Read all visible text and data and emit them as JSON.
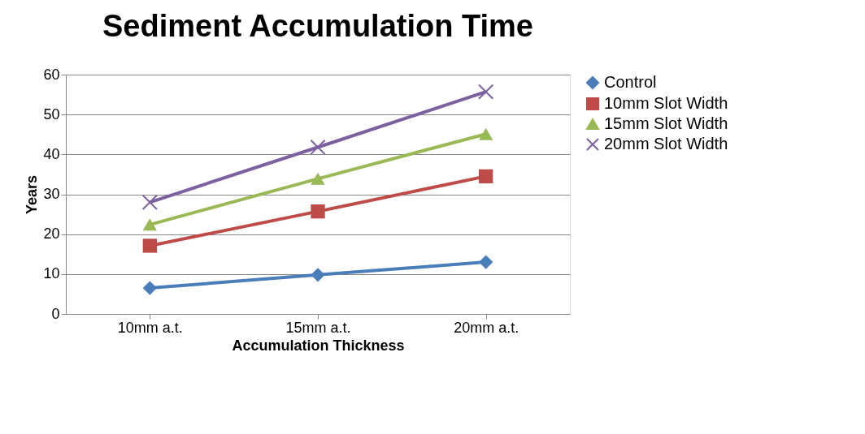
{
  "chart_data": {
    "type": "line",
    "title": "Sediment Accumulation Time",
    "xlabel": "Accumulation Thickness",
    "ylabel": "Years",
    "categories": [
      "10mm a.t.",
      "15mm a.t.",
      "20mm a.t."
    ],
    "series": [
      {
        "name": "Control",
        "color": "#4a7ebb",
        "marker": "diamond",
        "values": [
          6.5,
          9.8,
          13.0
        ]
      },
      {
        "name": "10mm Slot Width",
        "color": "#be4b48",
        "marker": "square",
        "values": [
          17.1,
          25.7,
          34.5
        ]
      },
      {
        "name": "15mm Slot Width",
        "color": "#98b954",
        "marker": "triangle",
        "values": [
          22.4,
          33.9,
          45.1
        ]
      },
      {
        "name": "20mm Slot Width",
        "color": "#7d60a0",
        "marker": "cross",
        "values": [
          28.0,
          41.8,
          55.7
        ]
      }
    ],
    "ylim": [
      0,
      60
    ],
    "yticks": [
      0,
      10,
      20,
      30,
      40,
      50,
      60
    ],
    "grid": "y",
    "legend": "right",
    "line_style": "solid"
  }
}
